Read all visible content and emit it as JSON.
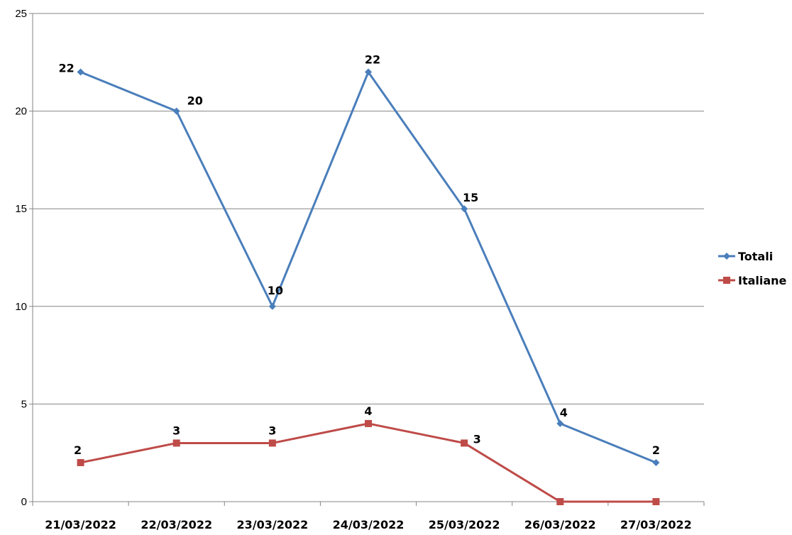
{
  "chart_data": {
    "type": "line",
    "categories": [
      "21/03/2022",
      "22/03/2022",
      "23/03/2022",
      "24/03/2022",
      "25/03/2022",
      "26/03/2022",
      "27/03/2022"
    ],
    "series": [
      {
        "name": "Totali",
        "values": [
          22,
          20,
          10,
          22,
          15,
          4,
          2
        ],
        "color": "#4a7ebb",
        "marker": "diamond",
        "labels": [
          "22",
          "20",
          "10",
          "22",
          "15",
          "4",
          "2"
        ]
      },
      {
        "name": "Italiane",
        "values": [
          2,
          3,
          3,
          4,
          3,
          0,
          0
        ],
        "color": "#be4b48",
        "marker": "square",
        "labels": [
          "2",
          "3",
          "3",
          "4",
          "3",
          "",
          ""
        ]
      }
    ],
    "y_ticks": [
      "0",
      "5",
      "10",
      "15",
      "20",
      "25"
    ],
    "ylim": [
      0,
      25
    ],
    "grid": true,
    "legend_position": "right"
  }
}
